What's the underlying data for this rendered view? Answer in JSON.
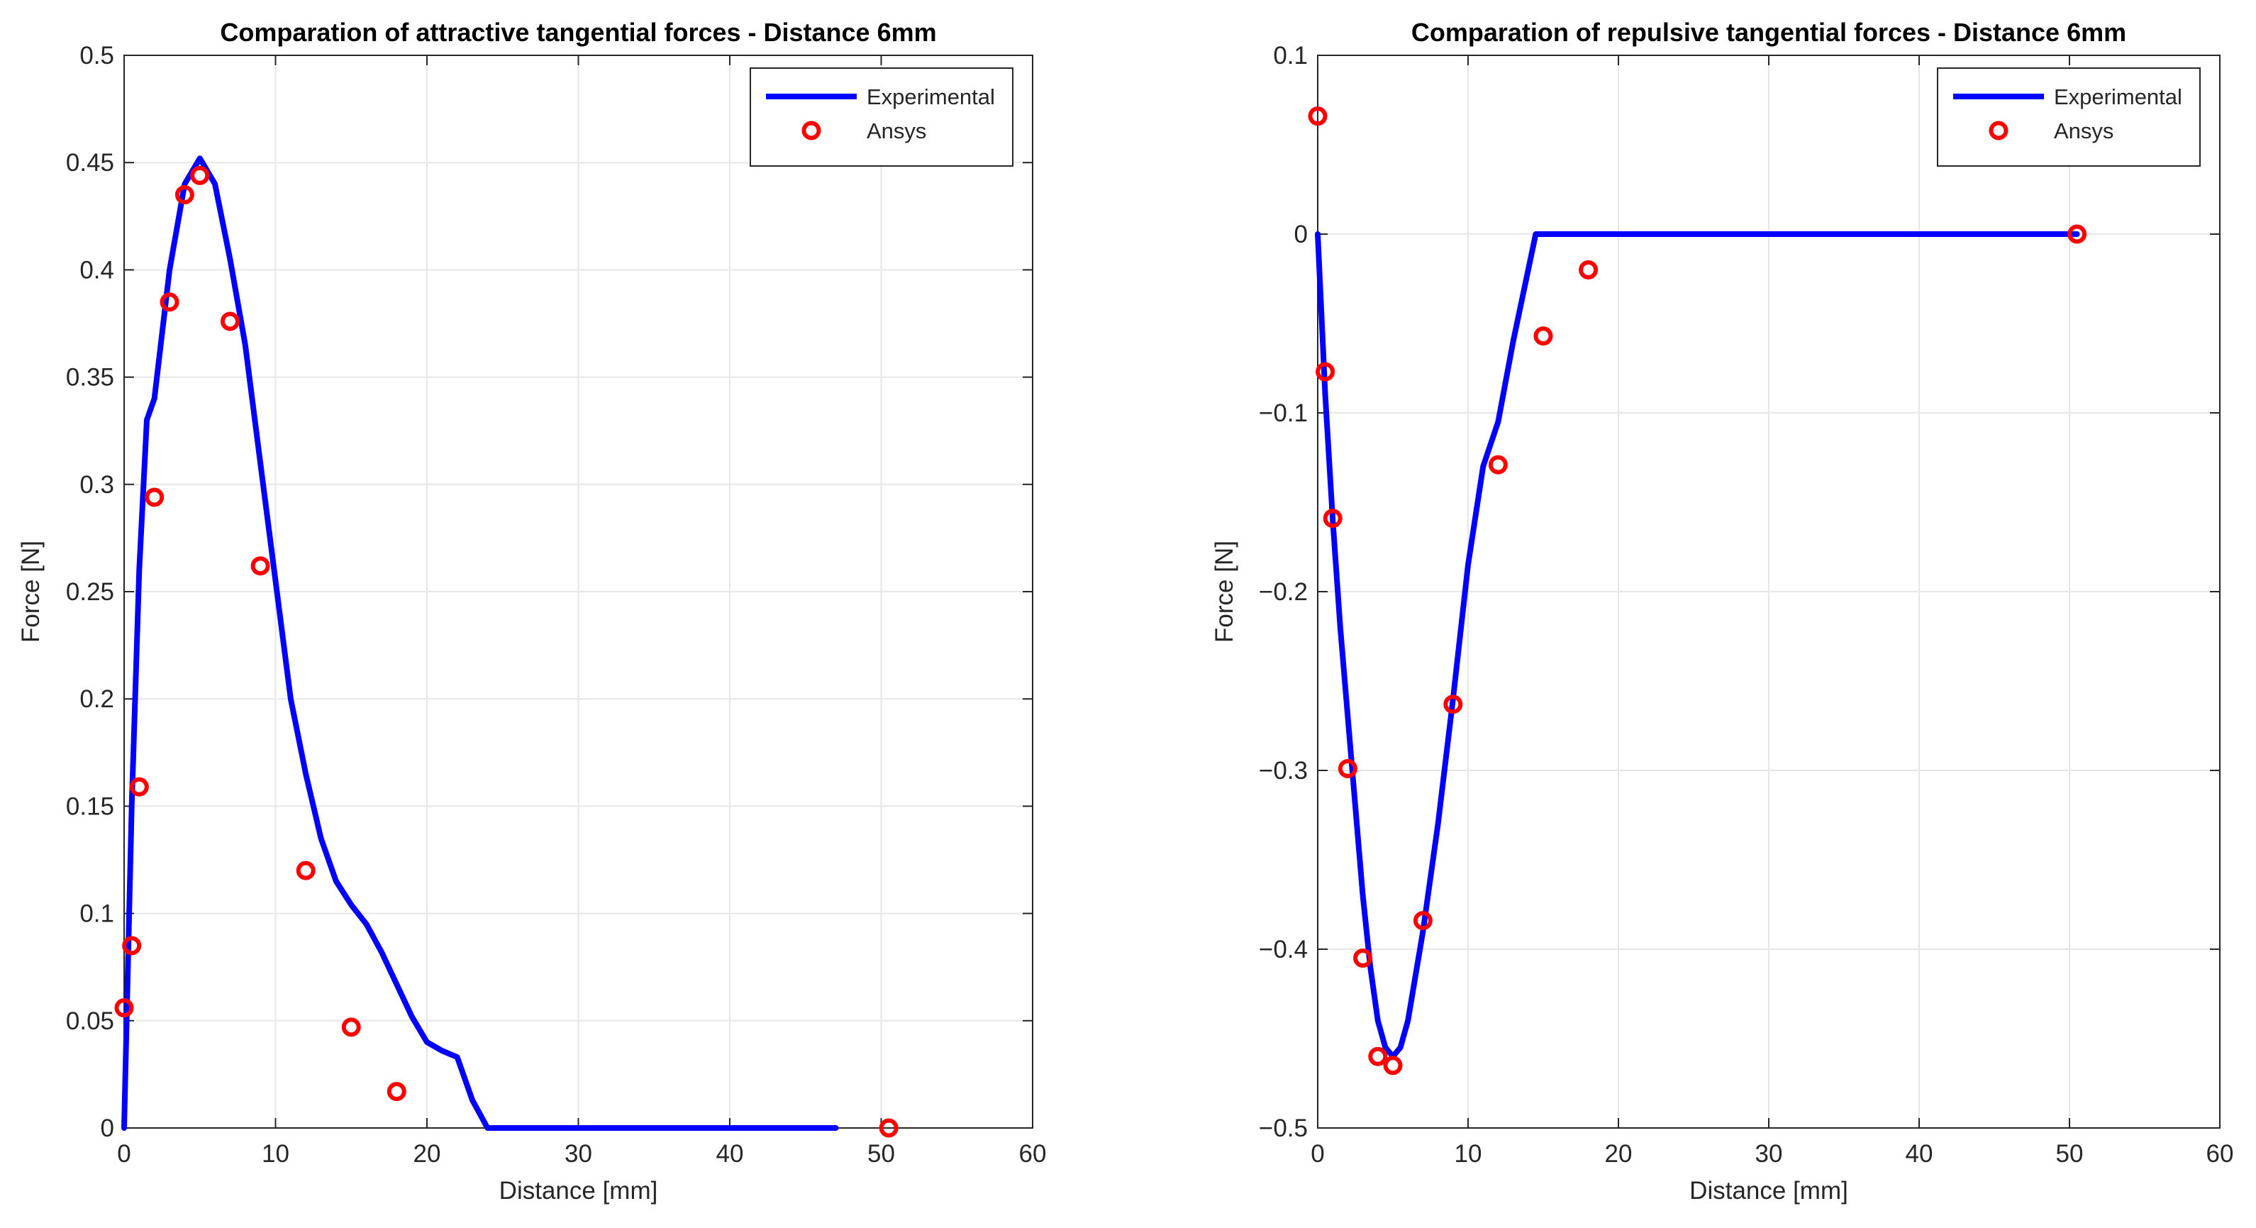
{
  "chart_data": [
    {
      "type": "line",
      "title": "Comparation of attractive tangential forces - Distance 6mm",
      "xlabel": "Distance [mm]",
      "ylabel": "Force [N]",
      "xlim": [
        0,
        60
      ],
      "ylim": [
        0,
        0.5
      ],
      "xticks": [
        0,
        10,
        20,
        30,
        40,
        50,
        60
      ],
      "yticks": [
        0,
        0.05,
        0.1,
        0.15,
        0.2,
        0.25,
        0.3,
        0.35,
        0.4,
        0.45,
        0.5
      ],
      "xtick_labels": [
        "0",
        "10",
        "20",
        "30",
        "40",
        "50",
        "60"
      ],
      "ytick_labels": [
        "0",
        "0.05",
        "0.1",
        "0.15",
        "0.2",
        "0.25",
        "0.3",
        "0.35",
        "0.4",
        "0.45",
        "0.5"
      ],
      "grid": true,
      "legend_position": "top-right",
      "series": [
        {
          "name": "Experimental",
          "style": "line",
          "color": "#0000ff",
          "x": [
            0,
            0.5,
            1,
            1.5,
            2,
            3,
            4,
            5,
            6,
            7,
            8,
            9,
            10,
            11,
            12,
            13,
            14,
            15,
            16,
            17,
            18,
            19,
            20,
            21,
            22,
            23,
            24,
            30,
            40,
            47
          ],
          "y": [
            0,
            0.15,
            0.26,
            0.33,
            0.34,
            0.4,
            0.44,
            0.452,
            0.44,
            0.405,
            0.365,
            0.31,
            0.255,
            0.2,
            0.165,
            0.135,
            0.115,
            0.104,
            0.095,
            0.082,
            0.067,
            0.052,
            0.04,
            0.036,
            0.033,
            0.013,
            0,
            0,
            0,
            0
          ]
        },
        {
          "name": "Ansys",
          "style": "markers",
          "color": "#ff0000",
          "x": [
            0,
            0.5,
            1,
            2,
            3,
            4,
            5,
            7,
            9,
            12,
            15,
            18,
            50.5
          ],
          "y": [
            0.056,
            0.085,
            0.159,
            0.294,
            0.385,
            0.435,
            0.444,
            0.376,
            0.262,
            0.12,
            0.047,
            0.017,
            0
          ]
        }
      ]
    },
    {
      "type": "line",
      "title": "Comparation of repulsive tangential forces - Distance 6mm",
      "xlabel": "Distance [mm]",
      "ylabel": "Force [N]",
      "xlim": [
        0,
        60
      ],
      "ylim": [
        -0.5,
        0.1
      ],
      "xticks": [
        0,
        10,
        20,
        30,
        40,
        50,
        60
      ],
      "yticks": [
        -0.5,
        -0.4,
        -0.3,
        -0.2,
        -0.1,
        0,
        0.1
      ],
      "xtick_labels": [
        "0",
        "10",
        "20",
        "30",
        "40",
        "50",
        "60"
      ],
      "ytick_labels": [
        "−0.5",
        "−0.4",
        "−0.3",
        "−0.2",
        "−0.1",
        "0",
        "0.1"
      ],
      "grid": true,
      "legend_position": "top-right",
      "series": [
        {
          "name": "Experimental",
          "style": "line",
          "color": "#0000ff",
          "x": [
            0,
            0.5,
            1,
            1.5,
            2,
            2.5,
            3,
            3.5,
            4,
            4.5,
            5,
            5.5,
            6,
            7,
            8,
            9,
            10,
            11,
            12,
            13,
            14,
            14.5,
            20,
            30,
            40,
            50.5
          ],
          "y": [
            0,
            -0.09,
            -0.16,
            -0.22,
            -0.27,
            -0.32,
            -0.37,
            -0.41,
            -0.44,
            -0.455,
            -0.46,
            -0.455,
            -0.44,
            -0.39,
            -0.33,
            -0.26,
            -0.185,
            -0.13,
            -0.105,
            -0.06,
            -0.02,
            0,
            0,
            0,
            0,
            0
          ]
        },
        {
          "name": "Ansys",
          "style": "markers",
          "color": "#ff0000",
          "x": [
            0,
            0.5,
            1,
            2,
            3,
            4,
            5,
            7,
            9,
            12,
            15,
            18,
            50.5
          ],
          "y": [
            0.066,
            -0.077,
            -0.159,
            -0.299,
            -0.405,
            -0.46,
            -0.465,
            -0.384,
            -0.263,
            -0.129,
            -0.057,
            -0.02,
            0
          ]
        }
      ]
    }
  ]
}
